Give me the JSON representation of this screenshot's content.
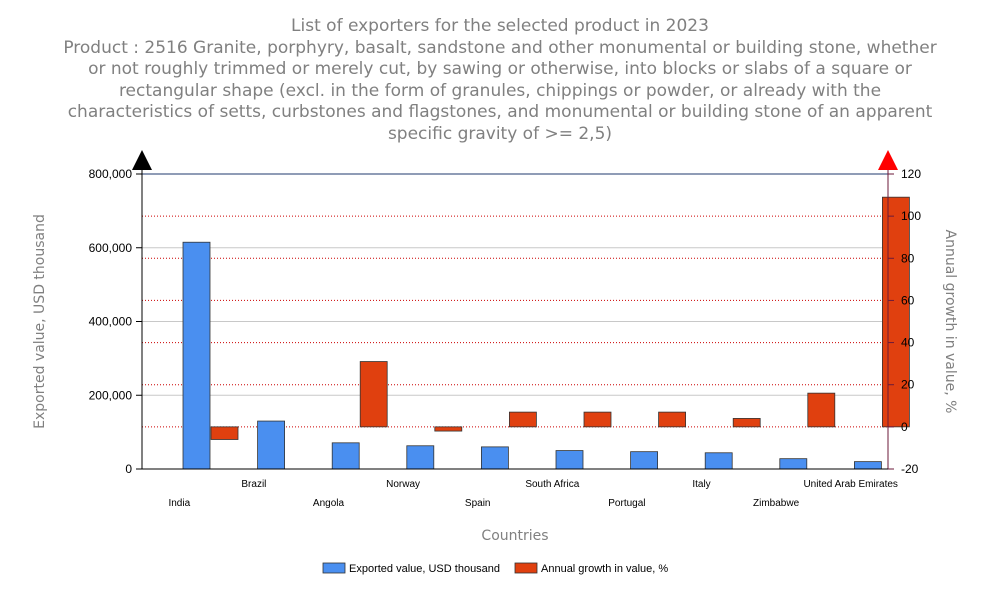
{
  "chart_data": {
    "type": "bar",
    "title": "List of exporters for the selected product in 2023",
    "subtitle_lines": [
      "Product : 2516 Granite, porphyry, basalt, sandstone and other monumental or building stone, whether",
      "or not roughly trimmed or merely cut, by sawing or otherwise, into blocks or slabs of a square or",
      "rectangular shape (excl. in the form of granules, chippings or powder, or already with the",
      "characteristics of setts, curbstones and flagstones, and monumental or building stone of an apparent",
      "specific gravity of >= 2,5)"
    ],
    "xlabel": "Countries",
    "ylabel": "Exported value, USD thousand",
    "y2label": "Annual growth in value, %",
    "categories": [
      "India",
      "Brazil",
      "Angola",
      "Norway",
      "Spain",
      "South Africa",
      "Portugal",
      "Italy",
      "Zimbabwe",
      "United Arab Emirates"
    ],
    "ylim": [
      0,
      800000
    ],
    "yticks": [
      0,
      200000,
      400000,
      600000,
      800000
    ],
    "ytick_labels": [
      "0",
      "200,000",
      "400,000",
      "600,000",
      "800,000"
    ],
    "y2lim": [
      -20,
      120
    ],
    "y2ticks": [
      -20,
      0,
      20,
      40,
      60,
      80,
      100,
      120
    ],
    "y2tick_labels": [
      "-20",
      "0",
      "20",
      "40",
      "60",
      "80",
      "100",
      "120"
    ],
    "series": [
      {
        "name": "Exported value, USD thousand",
        "axis": "left",
        "color": "#4a8ff0",
        "values": [
          615000,
          130000,
          71000,
          63000,
          60000,
          50000,
          47000,
          44000,
          28000,
          20000
        ]
      },
      {
        "name": "Annual growth in value, %",
        "axis": "right",
        "color": "#e0400f",
        "values": [
          -6,
          null,
          31,
          -2,
          7,
          7,
          7,
          4,
          16,
          109
        ]
      }
    ],
    "legend_position": "bottom",
    "left_axis_marker_color": "#000000",
    "right_axis_marker_color": "#ff0000"
  }
}
